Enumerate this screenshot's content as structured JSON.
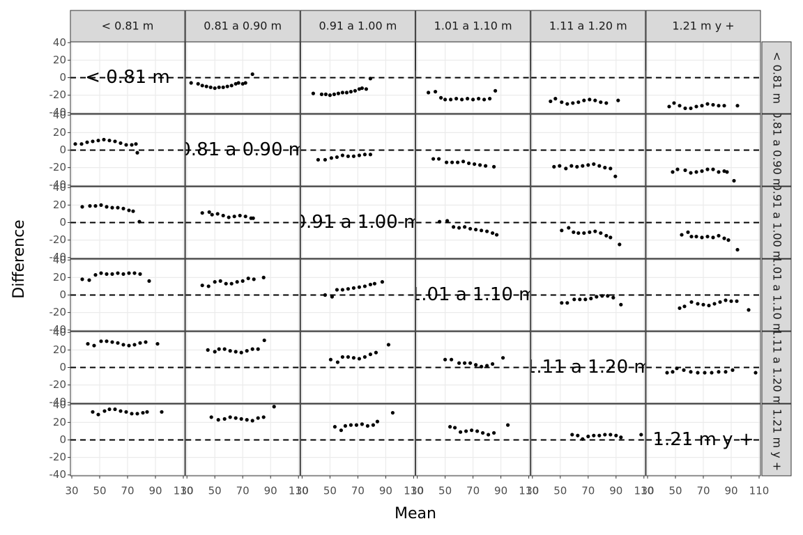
{
  "chart_data": {
    "type": "scatter",
    "x_label": "Mean",
    "y_label": "Difference",
    "facet_labels": [
      "< 0.81 m",
      "0.81 a 0.90 m",
      "0.91 a 1.00 m",
      "1.01 a 1.10 m",
      "1.11 a 1.20 m",
      "1.21 m y +"
    ],
    "xlim": [
      29,
      111
    ],
    "xticks": [
      30,
      50,
      70,
      90,
      110
    ],
    "ylim": [
      -41,
      41
    ],
    "yticks": [
      -40,
      -20,
      0,
      20,
      40
    ],
    "hline": 0,
    "color": "#000000",
    "grid": true,
    "panels": [
      [
        {
          "x": [],
          "y": []
        },
        {
          "x": [
            33,
            38,
            41,
            44,
            47,
            50,
            53,
            56,
            59,
            62,
            65,
            67,
            70,
            72,
            77
          ],
          "y": [
            -6,
            -7,
            -9,
            -10,
            -11,
            -12,
            -11,
            -11,
            -10,
            -9,
            -7,
            -6,
            -7,
            -6,
            4
          ]
        },
        {
          "x": [
            38,
            44,
            47,
            50,
            53,
            56,
            59,
            62,
            65,
            68,
            71,
            73,
            76,
            79
          ],
          "y": [
            -18,
            -19,
            -19,
            -20,
            -19,
            -18,
            -17,
            -17,
            -16,
            -15,
            -13,
            -12,
            -13,
            -1
          ]
        },
        {
          "x": [
            38,
            43,
            47,
            50,
            54,
            58,
            62,
            66,
            70,
            74,
            78,
            82,
            86
          ],
          "y": [
            -17,
            -16,
            -23,
            -25,
            -25,
            -24,
            -25,
            -24,
            -25,
            -24,
            -25,
            -24,
            -15
          ]
        },
        {
          "x": [
            43,
            46.5,
            51,
            55,
            59,
            63,
            67,
            71,
            75,
            79,
            83,
            91.5
          ],
          "y": [
            -27,
            -24,
            -28,
            -30,
            -29,
            -28,
            -26,
            -25,
            -26,
            -28,
            -29,
            -26
          ]
        },
        {
          "x": [
            45.5,
            49,
            53,
            57,
            61,
            65,
            69,
            73,
            77,
            81,
            85,
            94.5
          ],
          "y": [
            -33,
            -29,
            -32,
            -35,
            -35,
            -33,
            -32,
            -30,
            -31,
            -32,
            -32,
            -32
          ]
        }
      ],
      [
        {
          "x": [
            32.5,
            37,
            41,
            45,
            49,
            53,
            57,
            61,
            65,
            69,
            73,
            76,
            77
          ],
          "y": [
            7,
            7,
            9,
            10,
            11,
            12,
            11,
            10,
            8,
            6,
            6,
            7,
            -3
          ]
        },
        {
          "x": [],
          "y": []
        },
        {
          "x": [
            41.5,
            46.5,
            51,
            55,
            59,
            63,
            67,
            71,
            75,
            79
          ],
          "y": [
            -11,
            -11,
            -9,
            -8,
            -6,
            -7,
            -7,
            -6,
            -5,
            -5
          ]
        },
        {
          "x": [
            41.5,
            45.5,
            51,
            55,
            59,
            63,
            67,
            71,
            75,
            79,
            85
          ],
          "y": [
            -10,
            -10,
            -14,
            -14,
            -14,
            -13,
            -15,
            -16,
            -17,
            -18,
            -19
          ]
        },
        {
          "x": [
            45.5,
            49.5,
            54,
            58,
            62,
            66,
            70,
            74,
            78,
            82,
            86,
            89.5
          ],
          "y": [
            -19,
            -18,
            -21,
            -18,
            -19,
            -18,
            -17,
            -16,
            -18,
            -20,
            -21,
            -30
          ]
        },
        {
          "x": [
            48,
            51.5,
            57,
            61,
            65,
            69,
            73,
            77,
            81,
            85,
            87,
            92
          ],
          "y": [
            -25,
            -22,
            -23,
            -26,
            -25,
            -24,
            -22,
            -22,
            -25,
            -24,
            -25,
            -35
          ]
        }
      ],
      [
        {
          "x": [
            37.5,
            43,
            47,
            51,
            55,
            59,
            63,
            67,
            71,
            74,
            78.5
          ],
          "y": [
            18,
            19,
            19,
            20,
            18,
            17,
            17,
            16,
            14,
            13,
            1
          ]
        },
        {
          "x": [
            41,
            46,
            48,
            52,
            56,
            60,
            64,
            68,
            72,
            76,
            77.5
          ],
          "y": [
            11,
            12,
            9,
            10,
            8,
            6,
            7,
            8,
            7,
            5,
            5
          ]
        },
        {
          "x": [],
          "y": []
        },
        {
          "x": [
            46,
            51.5,
            56,
            60,
            64,
            68,
            72,
            76,
            80,
            84,
            87
          ],
          "y": [
            1,
            2,
            -5,
            -6,
            -5,
            -7,
            -8,
            -9,
            -10,
            -12,
            -14
          ]
        },
        {
          "x": [
            51,
            56,
            59.5,
            63,
            67,
            71,
            75,
            79,
            83,
            86,
            92.5
          ],
          "y": [
            -9,
            -6,
            -11,
            -12,
            -12,
            -11,
            -10,
            -12,
            -15,
            -17,
            -25
          ]
        },
        {
          "x": [
            54.5,
            59,
            61.5,
            65,
            69,
            73,
            77,
            81,
            85,
            88,
            94.5
          ],
          "y": [
            -14,
            -11,
            -16,
            -16,
            -17,
            -16,
            -17,
            -15,
            -18,
            -20,
            -31
          ]
        }
      ],
      [
        {
          "x": [
            37.5,
            42.5,
            47,
            51,
            55,
            59,
            63,
            67,
            71,
            75,
            79,
            85.5
          ],
          "y": [
            18,
            17,
            23,
            25,
            24,
            24,
            25,
            24,
            25,
            25,
            24,
            16
          ]
        },
        {
          "x": [
            41,
            45.5,
            50,
            54,
            58,
            62,
            66,
            70,
            74,
            78,
            85
          ],
          "y": [
            11,
            10,
            15,
            16,
            13,
            13,
            15,
            16,
            19,
            18,
            20
          ]
        },
        {
          "x": [
            46.5,
            51.5,
            55,
            59,
            63,
            67,
            71,
            75,
            79,
            82,
            87.5
          ],
          "y": [
            0,
            -2,
            6,
            6,
            7,
            8,
            9,
            10,
            12,
            13,
            15
          ]
        },
        {
          "x": [],
          "y": []
        },
        {
          "x": [
            51,
            55,
            60,
            64,
            68,
            72,
            76,
            80,
            84,
            88,
            93.5
          ],
          "y": [
            -9,
            -9,
            -5,
            -5,
            -5,
            -4,
            -2,
            -1,
            -1,
            -3,
            -11
          ]
        },
        {
          "x": [
            53,
            56.5,
            61.5,
            66,
            70,
            74,
            78,
            82,
            86,
            90,
            94,
            102.5
          ],
          "y": [
            -15,
            -13,
            -8,
            -10,
            -11,
            -12,
            -10,
            -8,
            -6,
            -7,
            -7,
            -17
          ]
        }
      ],
      [
        {
          "x": [
            41.5,
            46,
            51,
            55,
            59,
            63,
            67,
            71,
            75,
            79,
            83,
            91.5
          ],
          "y": [
            27,
            25,
            30,
            30,
            29,
            28,
            26,
            25,
            26,
            28,
            29,
            27
          ]
        },
        {
          "x": [
            45,
            50,
            53,
            57,
            61,
            65,
            69,
            73,
            77,
            81,
            85.5
          ],
          "y": [
            20,
            18,
            21,
            21,
            19,
            18,
            17,
            19,
            21,
            21,
            31
          ]
        },
        {
          "x": [
            50.5,
            55.5,
            59,
            63,
            67,
            71,
            75,
            79,
            83,
            92
          ],
          "y": [
            9,
            6,
            12,
            12,
            11,
            10,
            12,
            15,
            17,
            26
          ]
        },
        {
          "x": [
            50,
            54.5,
            60,
            64,
            68,
            72,
            76,
            80,
            84,
            91.5
          ],
          "y": [
            9,
            9,
            5,
            5,
            5,
            3,
            1,
            2,
            4,
            11
          ]
        },
        {
          "x": [],
          "y": []
        },
        {
          "x": [
            44,
            48,
            51,
            56,
            61,
            66,
            71,
            76,
            81,
            86,
            91,
            107.5
          ],
          "y": [
            -6,
            -5,
            -1,
            -3,
            -5,
            -6,
            -6,
            -6,
            -5,
            -5,
            -3,
            -6
          ]
        }
      ],
      [
        {
          "x": [
            45,
            49,
            53.5,
            57,
            61,
            65,
            69,
            73,
            77,
            81,
            84,
            94.5
          ],
          "y": [
            32,
            29,
            33,
            35,
            35,
            33,
            32,
            30,
            30,
            31,
            32,
            32
          ]
        },
        {
          "x": [
            47.5,
            52.5,
            57,
            61,
            65,
            69,
            73,
            77,
            81,
            85,
            92.5
          ],
          "y": [
            26,
            23,
            24,
            26,
            25,
            24,
            23,
            22,
            25,
            26,
            38
          ]
        },
        {
          "x": [
            53.5,
            58,
            61,
            65,
            69,
            73,
            77,
            81,
            84,
            95
          ],
          "y": [
            15,
            11,
            16,
            17,
            17,
            18,
            16,
            17,
            21,
            31
          ]
        },
        {
          "x": [
            53.5,
            57,
            61,
            65,
            69,
            73,
            77,
            81,
            85,
            95
          ],
          "y": [
            15,
            14,
            9,
            10,
            11,
            10,
            8,
            6,
            8,
            17
          ]
        },
        {
          "x": [
            58.5,
            62.5,
            66,
            70,
            74,
            78,
            82,
            86,
            90,
            93.5,
            108
          ],
          "y": [
            6,
            5,
            1,
            4,
            5,
            5,
            6,
            6,
            5,
            3,
            6
          ]
        },
        {
          "x": [],
          "y": []
        }
      ]
    ]
  }
}
